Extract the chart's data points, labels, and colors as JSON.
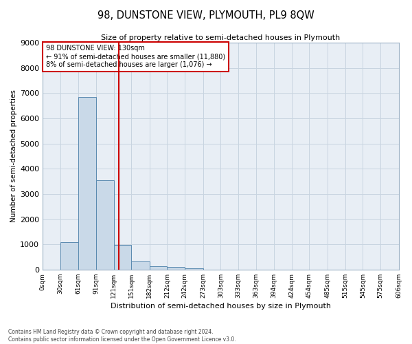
{
  "title": "98, DUNSTONE VIEW, PLYMOUTH, PL9 8QW",
  "subtitle": "Size of property relative to semi-detached houses in Plymouth",
  "xlabel": "Distribution of semi-detached houses by size in Plymouth",
  "ylabel": "Number of semi-detached properties",
  "footer_line1": "Contains HM Land Registry data © Crown copyright and database right 2024.",
  "footer_line2": "Contains public sector information licensed under the Open Government Licence v3.0.",
  "property_label": "98 DUNSTONE VIEW: 130sqm",
  "pct_smaller": 91,
  "count_smaller": 11880,
  "pct_larger": 8,
  "count_larger": 1076,
  "bin_edges": [
    0,
    30,
    61,
    91,
    121,
    151,
    182,
    212,
    242,
    273,
    303,
    333,
    363,
    394,
    424,
    454,
    485,
    515,
    545,
    575,
    606
  ],
  "bin_labels": [
    "0sqm",
    "30sqm",
    "61sqm",
    "91sqm",
    "121sqm",
    "151sqm",
    "182sqm",
    "212sqm",
    "242sqm",
    "273sqm",
    "303sqm",
    "333sqm",
    "363sqm",
    "394sqm",
    "424sqm",
    "454sqm",
    "485sqm",
    "515sqm",
    "545sqm",
    "575sqm",
    "606sqm"
  ],
  "counts": [
    0,
    1100,
    6850,
    3550,
    990,
    320,
    130,
    100,
    60,
    0,
    0,
    0,
    0,
    0,
    0,
    0,
    0,
    0,
    0,
    0
  ],
  "bar_color": "#c9d9e8",
  "bar_edge_color": "#5a8ab0",
  "vline_x": 130,
  "vline_color": "#cc0000",
  "annotation_box_color": "#cc0000",
  "ylim": [
    0,
    9000
  ],
  "yticks": [
    0,
    1000,
    2000,
    3000,
    4000,
    5000,
    6000,
    7000,
    8000,
    9000
  ],
  "grid_color": "#c8d4e0",
  "bg_color": "#e8eef5"
}
